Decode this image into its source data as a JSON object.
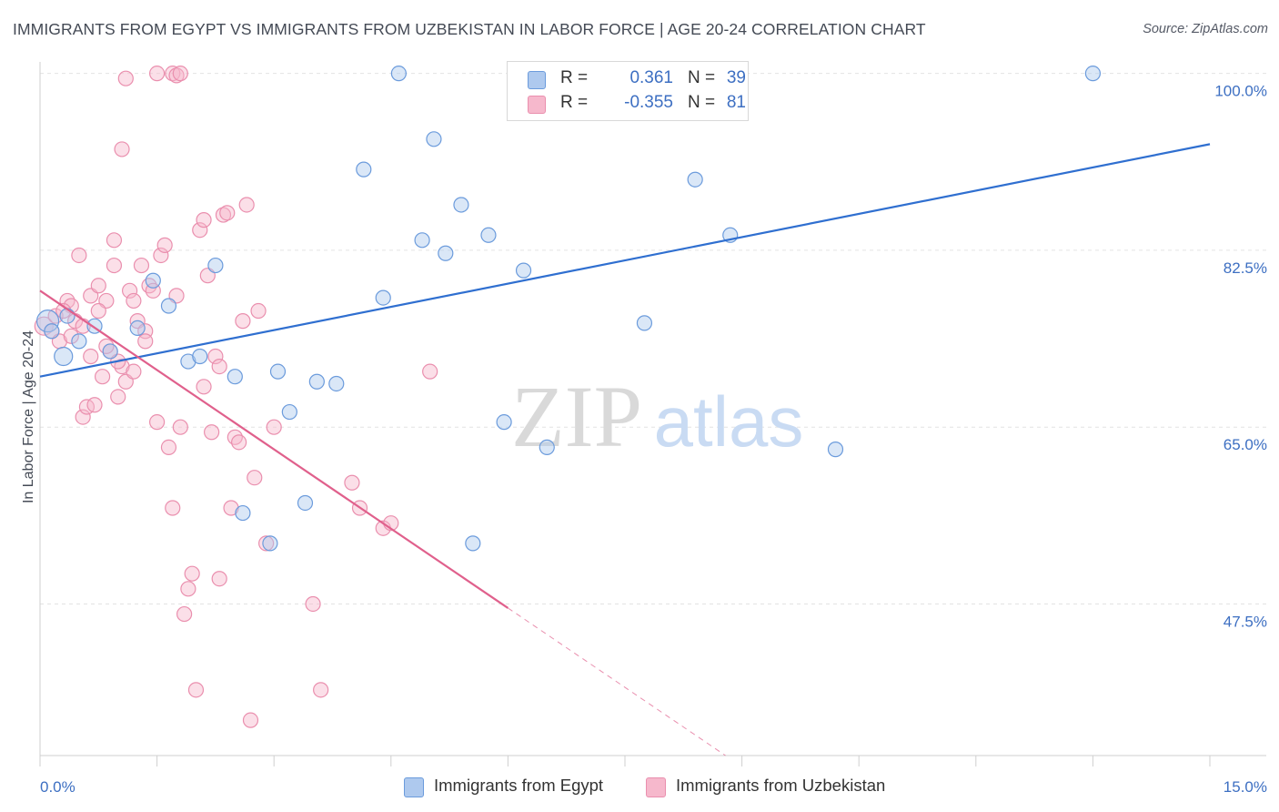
{
  "title": "IMMIGRANTS FROM EGYPT VS IMMIGRANTS FROM UZBEKISTAN IN LABOR FORCE | AGE 20-24 CORRELATION CHART",
  "source": "Source: ZipAtlas.com",
  "watermark": {
    "zip": "ZIP",
    "atlas": "atlas"
  },
  "legend": {
    "rows": [
      {
        "r_label": "R =",
        "r_value": "0.361",
        "n_label": "N =",
        "n_value": "39"
      },
      {
        "r_label": "R =",
        "r_value": "-0.355",
        "n_label": "N =",
        "n_value": "81"
      }
    ]
  },
  "colors": {
    "blue_fill": "#aec9ee",
    "blue_stroke": "#6b9bdc",
    "blue_line": "#2f6fd0",
    "pink_fill": "#f6b8cc",
    "pink_stroke": "#ea8fae",
    "pink_line": "#e0608c",
    "axis_text": "#3d6fc2",
    "grid": "#e3e3e3"
  },
  "chart_data": {
    "type": "scatter",
    "title": "IMMIGRANTS FROM EGYPT VS IMMIGRANTS FROM UZBEKISTAN IN LABOR FORCE | AGE 20-24 CORRELATION CHART",
    "xlabel": "",
    "ylabel": "In Labor Force | Age 20-24",
    "xlim": [
      0,
      15
    ],
    "ylim": [
      32.5,
      101.5
    ],
    "x_tick_labels": [
      "0.0%",
      "15.0%"
    ],
    "y_ticks": [
      47.5,
      65.0,
      82.5,
      100.0
    ],
    "y_tick_labels": [
      "47.5%",
      "65.0%",
      "82.5%",
      "100.0%"
    ],
    "grid": true,
    "legend_position": "bottom",
    "series": [
      {
        "name": "Immigrants from Egypt",
        "color": "blue",
        "r": 0.361,
        "n": 39,
        "trend": {
          "x": [
            0,
            15
          ],
          "y": [
            70.0,
            93.0
          ],
          "solid_until": 15
        },
        "points": [
          [
            0.1,
            75.5,
            12
          ],
          [
            0.3,
            72.0,
            10
          ],
          [
            0.5,
            73.5,
            8
          ],
          [
            0.7,
            75.0,
            8
          ],
          [
            0.9,
            72.5,
            8
          ],
          [
            1.25,
            74.8,
            8
          ],
          [
            1.45,
            79.5,
            8
          ],
          [
            1.65,
            77.0,
            8
          ],
          [
            1.9,
            71.5,
            8
          ],
          [
            2.05,
            72.0,
            8
          ],
          [
            2.25,
            81.0,
            8
          ],
          [
            2.5,
            70.0,
            8
          ],
          [
            2.6,
            56.5,
            8
          ],
          [
            2.95,
            53.5,
            8
          ],
          [
            3.05,
            70.5,
            8
          ],
          [
            3.2,
            66.5,
            8
          ],
          [
            3.4,
            57.5,
            8
          ],
          [
            3.55,
            69.5,
            8
          ],
          [
            3.8,
            69.3,
            8
          ],
          [
            4.15,
            90.5,
            8
          ],
          [
            4.4,
            77.8,
            8
          ],
          [
            4.6,
            100.0,
            8
          ],
          [
            4.9,
            83.5,
            8
          ],
          [
            5.05,
            93.5,
            8
          ],
          [
            5.2,
            82.2,
            8
          ],
          [
            5.4,
            87.0,
            8
          ],
          [
            5.55,
            53.5,
            8
          ],
          [
            5.75,
            84.0,
            8
          ],
          [
            5.95,
            65.5,
            8
          ],
          [
            6.2,
            80.5,
            8
          ],
          [
            6.5,
            63.0,
            8
          ],
          [
            6.85,
            100.0,
            8
          ],
          [
            7.75,
            75.3,
            8
          ],
          [
            8.4,
            89.5,
            8
          ],
          [
            8.85,
            84.0,
            8
          ],
          [
            10.2,
            62.8,
            8
          ],
          [
            13.5,
            100.0,
            8
          ],
          [
            0.15,
            74.5,
            8
          ],
          [
            0.35,
            76.0,
            8
          ]
        ]
      },
      {
        "name": "Immigrants from Uzbekistan",
        "color": "pink",
        "r": -0.355,
        "n": 81,
        "trend": {
          "x": [
            0,
            15
          ],
          "y": [
            78.5,
            0.0
          ],
          "solid_until": 6.0
        },
        "points": [
          [
            0.05,
            75.0,
            10
          ],
          [
            0.15,
            74.5,
            8
          ],
          [
            0.2,
            76.0,
            8
          ],
          [
            0.25,
            73.5,
            8
          ],
          [
            0.35,
            77.5,
            8
          ],
          [
            0.4,
            77.0,
            8
          ],
          [
            0.45,
            75.5,
            8
          ],
          [
            0.5,
            82.0,
            8
          ],
          [
            0.55,
            66.0,
            8
          ],
          [
            0.6,
            67.0,
            8
          ],
          [
            0.65,
            78.0,
            8
          ],
          [
            0.7,
            67.2,
            8
          ],
          [
            0.75,
            79.0,
            8
          ],
          [
            0.8,
            70.0,
            8
          ],
          [
            0.85,
            77.5,
            8
          ],
          [
            0.9,
            72.5,
            8
          ],
          [
            0.95,
            81.0,
            8
          ],
          [
            1.0,
            68.0,
            8
          ],
          [
            1.05,
            71.0,
            8
          ],
          [
            1.1,
            69.5,
            8
          ],
          [
            1.15,
            78.5,
            8
          ],
          [
            1.2,
            70.5,
            8
          ],
          [
            1.25,
            75.5,
            8
          ],
          [
            1.3,
            81.0,
            8
          ],
          [
            1.35,
            74.5,
            8
          ],
          [
            1.4,
            79.0,
            8
          ],
          [
            1.45,
            78.5,
            8
          ],
          [
            1.5,
            65.5,
            8
          ],
          [
            1.55,
            82.0,
            8
          ],
          [
            1.6,
            83.0,
            8
          ],
          [
            1.65,
            63.0,
            8
          ],
          [
            1.7,
            57.0,
            8
          ],
          [
            1.75,
            78.0,
            8
          ],
          [
            1.8,
            65.0,
            8
          ],
          [
            1.85,
            46.5,
            8
          ],
          [
            1.9,
            49.0,
            8
          ],
          [
            1.95,
            50.5,
            8
          ],
          [
            2.0,
            39.0,
            8
          ],
          [
            2.05,
            84.5,
            8
          ],
          [
            2.1,
            85.5,
            8
          ],
          [
            2.15,
            80.0,
            8
          ],
          [
            2.2,
            64.5,
            8
          ],
          [
            2.25,
            72.0,
            8
          ],
          [
            2.3,
            50.0,
            8
          ],
          [
            2.35,
            86.0,
            8
          ],
          [
            2.4,
            86.2,
            8
          ],
          [
            2.45,
            57.0,
            8
          ],
          [
            2.5,
            64.0,
            8
          ],
          [
            2.55,
            63.5,
            8
          ],
          [
            2.6,
            75.5,
            8
          ],
          [
            2.65,
            87.0,
            8
          ],
          [
            2.7,
            36.0,
            8
          ],
          [
            2.75,
            60.0,
            8
          ],
          [
            2.8,
            76.5,
            8
          ],
          [
            2.9,
            53.5,
            8
          ],
          [
            3.0,
            65.0,
            8
          ],
          [
            3.5,
            47.5,
            8
          ],
          [
            3.6,
            39.0,
            8
          ],
          [
            4.0,
            59.5,
            8
          ],
          [
            4.1,
            57.0,
            8
          ],
          [
            4.4,
            55.0,
            8
          ],
          [
            4.5,
            55.5,
            8
          ],
          [
            5.0,
            70.5,
            8
          ],
          [
            1.1,
            99.5,
            8
          ],
          [
            1.5,
            100.0,
            8
          ],
          [
            1.7,
            100.0,
            8
          ],
          [
            1.75,
            99.8,
            8
          ],
          [
            1.8,
            100.0,
            8
          ],
          [
            1.05,
            92.5,
            8
          ],
          [
            0.95,
            83.5,
            8
          ],
          [
            0.3,
            76.5,
            8
          ],
          [
            0.4,
            74.0,
            8
          ],
          [
            0.55,
            75.0,
            8
          ],
          [
            0.65,
            72.0,
            8
          ],
          [
            0.75,
            76.5,
            8
          ],
          [
            0.85,
            73.0,
            8
          ],
          [
            1.0,
            71.5,
            8
          ],
          [
            1.2,
            77.5,
            8
          ],
          [
            1.35,
            73.5,
            8
          ],
          [
            2.1,
            69.0,
            8
          ],
          [
            2.3,
            71.0,
            8
          ]
        ]
      }
    ]
  },
  "bottom_legend": {
    "items": [
      {
        "label": "Immigrants from Egypt"
      },
      {
        "label": "Immigrants from Uzbekistan"
      }
    ]
  }
}
